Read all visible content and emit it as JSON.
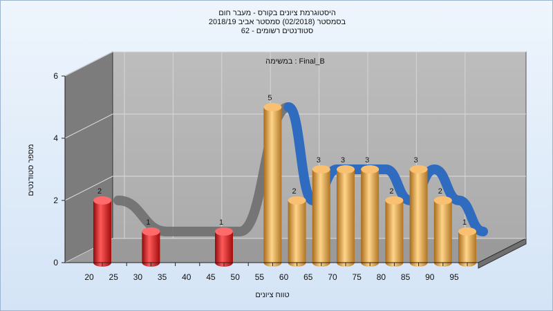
{
  "chart_data": {
    "type": "bar",
    "title": [
      "היסטוגרמת ציונים בקורס - מעבר חום",
      "בסמסטר  (02/2018)  סמסטר אביב 2018/19",
      "סטודנטים רשומים - 62"
    ],
    "annotation": "במשימה : Final_B",
    "xlabel": "טווח ציונים",
    "ylabel": "מספר סטודנטים",
    "x_ticks": [
      "20",
      "25",
      "30",
      "35",
      "40",
      "45",
      "50",
      "55",
      "60",
      "65",
      "70",
      "75",
      "80",
      "85",
      "90",
      "95"
    ],
    "y_ticks": [
      "0",
      "2",
      "4",
      "6"
    ],
    "ylim": [
      0,
      6
    ],
    "bars": [
      {
        "x": 20,
        "value": 2,
        "color": "red"
      },
      {
        "x": 30,
        "value": 1,
        "color": "red"
      },
      {
        "x": 45,
        "value": 1,
        "color": "red"
      },
      {
        "x": 55,
        "value": 5,
        "color": "orange"
      },
      {
        "x": 60,
        "value": 2,
        "color": "orange"
      },
      {
        "x": 65,
        "value": 3,
        "color": "orange"
      },
      {
        "x": 70,
        "value": 3,
        "color": "orange"
      },
      {
        "x": 75,
        "value": 3,
        "color": "orange"
      },
      {
        "x": 80,
        "value": 2,
        "color": "orange"
      },
      {
        "x": 85,
        "value": 3,
        "color": "orange"
      },
      {
        "x": 90,
        "value": 2,
        "color": "orange"
      },
      {
        "x": 95,
        "value": 1,
        "color": "orange"
      }
    ],
    "colors": {
      "red": "#e01818",
      "orange": "#e8a845",
      "curve_front": "#2f6cbf",
      "curve_back": "#6b6b6b"
    },
    "grid": true,
    "style": "3d"
  }
}
